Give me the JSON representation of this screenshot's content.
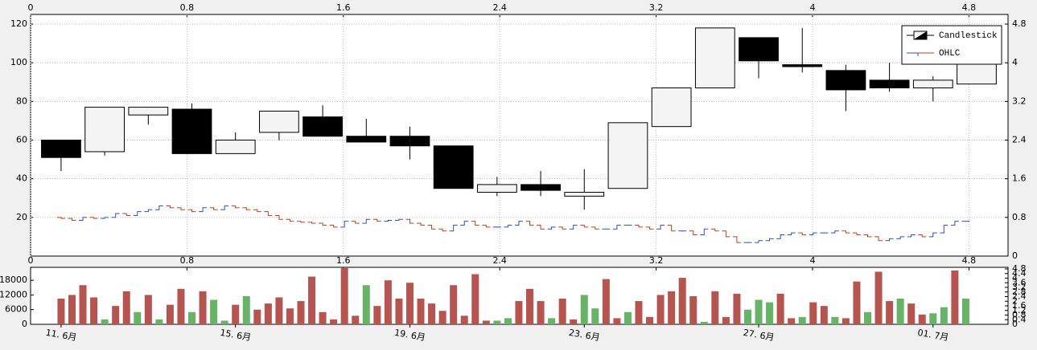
{
  "chart_data": [
    {
      "type": "candlestick",
      "xlim": [
        10.3,
        32.72
      ],
      "x2lim": [
        0,
        5
      ],
      "x2ticks": [
        0,
        0.8,
        1.6,
        2.4,
        3.2,
        4,
        4.8
      ],
      "ylim": [
        0,
        125
      ],
      "yticks": [
        20,
        40,
        60,
        80,
        100,
        120
      ],
      "y2lim": [
        0,
        5
      ],
      "y2ticks": [
        0,
        0.8,
        1.6,
        2.4,
        3.2,
        4,
        4.8
      ],
      "grid": true,
      "legend": "top-right",
      "series": [
        {
          "name": "Candlestick",
          "type": "candlestick",
          "up_color": "#f4f4f4",
          "down_color": "#000000",
          "x": [
            11,
            12,
            13,
            14,
            15,
            16,
            17,
            18,
            19,
            20,
            21,
            22,
            23,
            24,
            25,
            26,
            27,
            28,
            29,
            30,
            31,
            32
          ],
          "open": [
            60,
            54,
            73,
            76,
            53,
            64,
            72,
            62,
            62,
            57,
            33,
            37,
            31,
            35,
            67,
            87,
            113,
            99,
            96,
            91,
            87,
            89
          ],
          "high": [
            60,
            77,
            77,
            79,
            64,
            75,
            78,
            71,
            67,
            57,
            41,
            44,
            45,
            69,
            87,
            118,
            113,
            118,
            99,
            100,
            93,
            104
          ],
          "low": [
            44,
            52,
            68,
            53,
            53,
            60,
            62,
            59,
            50,
            35,
            31,
            31,
            24,
            35,
            67,
            87,
            92,
            95,
            75,
            85,
            80,
            89
          ],
          "close": [
            51,
            77,
            77,
            53,
            60,
            75,
            62,
            59,
            57,
            35,
            37,
            34,
            33,
            69,
            87,
            118,
            101,
            98,
            86,
            87,
            91,
            104
          ]
        },
        {
          "name": "OHLC",
          "type": "ohlc",
          "up_color": "#3050c0",
          "down_color": "#c04020",
          "x": [
            11,
            11.25,
            11.5,
            11.75,
            12,
            12.25,
            12.5,
            12.75,
            13,
            13.25,
            13.5,
            13.75,
            14,
            14.25,
            14.5,
            14.75,
            15,
            15.25,
            15.5,
            15.75,
            16,
            16.25,
            16.5,
            16.75,
            17,
            17.25,
            17.5,
            17.75,
            18,
            18.25,
            18.5,
            18.75,
            19,
            19.25,
            19.5,
            19.75,
            20,
            20.25,
            20.5,
            20.75,
            21,
            21.25,
            21.5,
            21.75,
            22,
            22.25,
            22.5,
            22.75,
            23,
            23.25,
            23.5,
            23.75,
            24,
            24.25,
            24.5,
            24.75,
            25,
            25.25,
            25.5,
            25.75,
            26,
            26.25,
            26.5,
            26.75,
            27,
            27.25,
            27.5,
            27.75,
            28,
            28.25,
            28.5,
            28.75,
            29,
            29.25,
            29.5,
            29.75,
            30,
            30.25,
            30.5,
            30.75,
            31,
            31.25,
            31.5,
            31.75
          ],
          "open": [
            20,
            19.5,
            18.5,
            20,
            19.5,
            20,
            22,
            21,
            23,
            24,
            26,
            25,
            24,
            23,
            25,
            24,
            26,
            25,
            24,
            23,
            21,
            19,
            18,
            17.5,
            17,
            16,
            15,
            18,
            17,
            19,
            18,
            18.5,
            19,
            17,
            16,
            14,
            13,
            16,
            18,
            16,
            15,
            15,
            16,
            18,
            16,
            14,
            15,
            14,
            16,
            15,
            14,
            14,
            16,
            16,
            15,
            14,
            16,
            13,
            13,
            11,
            14,
            13,
            10,
            7,
            7,
            8,
            9,
            11,
            12,
            11,
            12,
            12,
            13,
            12,
            11,
            10,
            8,
            9,
            10,
            11,
            10,
            12,
            16,
            18
          ],
          "high": [
            20,
            19.5,
            20,
            20,
            20,
            22,
            22,
            23,
            24,
            26,
            26,
            25,
            24,
            25,
            25,
            26,
            26,
            25,
            24,
            23,
            21,
            19,
            18,
            17.5,
            17,
            16,
            18,
            18,
            19,
            19,
            18.5,
            19,
            19,
            17,
            16,
            14,
            16,
            18,
            18,
            16,
            15,
            16,
            18,
            18,
            16,
            15,
            15,
            16,
            16,
            15,
            14,
            16,
            16,
            16,
            15,
            16,
            16,
            13,
            13,
            14,
            14,
            13,
            10,
            7,
            8,
            9,
            11,
            12,
            12,
            12,
            12,
            13,
            13,
            12,
            11,
            10,
            9,
            10,
            11,
            11,
            12,
            16,
            18,
            18
          ],
          "low": [
            19.5,
            18.5,
            18.5,
            19.5,
            19.5,
            20,
            21,
            21,
            23,
            24,
            25,
            24,
            23,
            23,
            24,
            24,
            25,
            24,
            23,
            21,
            19,
            18,
            17.5,
            17,
            16,
            15,
            15,
            17,
            17,
            18,
            18,
            18.5,
            17,
            16,
            14,
            13,
            13,
            16,
            16,
            15,
            15,
            15,
            16,
            16,
            14,
            14,
            14,
            14,
            15,
            14,
            14,
            14,
            16,
            15,
            14,
            14,
            13,
            13,
            11,
            11,
            13,
            10,
            7,
            7,
            7,
            8,
            9,
            11,
            11,
            11,
            12,
            12,
            12,
            11,
            10,
            8,
            8,
            9,
            10,
            10,
            10,
            12,
            16,
            18
          ],
          "close": [
            19.5,
            18.5,
            20,
            19.5,
            20,
            22,
            21,
            23,
            24,
            26,
            25,
            24,
            23,
            25,
            24,
            26,
            25,
            24,
            23,
            21,
            19,
            18,
            17.5,
            17,
            16,
            15,
            18,
            17,
            19,
            18,
            18.5,
            19,
            17,
            16,
            14,
            13,
            16,
            18,
            16,
            15,
            15,
            16,
            18,
            16,
            14,
            15,
            14,
            16,
            15,
            14,
            14,
            16,
            16,
            15,
            14,
            16,
            13,
            13,
            11,
            14,
            13,
            10,
            7,
            7,
            8,
            9,
            11,
            12,
            11,
            12,
            12,
            13,
            12,
            11,
            10,
            8,
            9,
            10,
            11,
            10,
            12,
            16,
            18,
            18
          ]
        }
      ]
    },
    {
      "type": "bar",
      "xlim": [
        10.3,
        32.72
      ],
      "xticks": [
        {
          "value": 11,
          "label": "11. 6月"
        },
        {
          "value": 15,
          "label": "15. 6月"
        },
        {
          "value": 19,
          "label": "19. 6月"
        },
        {
          "value": 23,
          "label": "23. 6月"
        },
        {
          "value": 27,
          "label": "27. 6月"
        },
        {
          "value": 31,
          "label": "01. 7月"
        }
      ],
      "x2lim": [
        0,
        5
      ],
      "x2ticks": [
        0,
        0.8,
        1.6,
        2.4,
        3.2,
        4,
        4.8
      ],
      "ylim": [
        0,
        23300
      ],
      "yticks": [
        0,
        6000,
        12000,
        18000
      ],
      "y2lim": [
        0,
        4.94
      ],
      "y2ticks": [
        0,
        0.4,
        0.8,
        1.2,
        1.6,
        2,
        2.4,
        2.8,
        3.2,
        3.6,
        4,
        4.4,
        4.8
      ],
      "grid": false,
      "x": [
        11,
        11.25,
        11.5,
        11.75,
        12,
        12.25,
        12.5,
        12.75,
        13,
        13.25,
        13.5,
        13.75,
        14,
        14.25,
        14.5,
        14.75,
        15,
        15.25,
        15.5,
        15.75,
        16,
        16.25,
        16.5,
        16.75,
        17,
        17.25,
        17.5,
        17.75,
        18,
        18.25,
        18.5,
        18.75,
        19,
        19.25,
        19.5,
        19.75,
        20,
        20.25,
        20.5,
        20.75,
        21,
        21.25,
        21.5,
        21.75,
        22,
        22.25,
        22.5,
        22.75,
        23,
        23.25,
        23.5,
        23.75,
        24,
        24.25,
        24.5,
        24.75,
        25,
        25.25,
        25.5,
        25.75,
        26,
        26.25,
        26.5,
        26.75,
        27,
        27.25,
        27.5,
        27.75,
        28,
        28.25,
        28.5,
        28.75,
        29,
        29.25,
        29.5,
        29.75,
        30,
        30.25,
        30.5,
        30.75,
        31,
        31.25,
        31.5,
        31.75
      ],
      "values": [
        10500,
        12000,
        16000,
        11000,
        2000,
        7500,
        13500,
        5000,
        12000,
        2000,
        8000,
        14500,
        5000,
        13500,
        10000,
        1500,
        8000,
        11500,
        6000,
        8500,
        11000,
        6500,
        9500,
        19500,
        5000,
        2000,
        23000,
        3500,
        16000,
        7500,
        18000,
        10500,
        17000,
        10500,
        8500,
        5500,
        16000,
        3500,
        20500,
        1500,
        1500,
        2500,
        9500,
        14500,
        9500,
        2500,
        10500,
        2000,
        12000,
        6500,
        18500,
        2500,
        5000,
        9500,
        3000,
        12000,
        13500,
        19000,
        11500,
        1000,
        13500,
        3000,
        12500,
        6000,
        10000,
        9000,
        12500,
        2500,
        3000,
        9000,
        7500,
        3000,
        2500,
        17500,
        5000,
        21500,
        9500,
        10500,
        8500,
        4000,
        4500,
        7000,
        22000,
        10500
      ],
      "colors": [
        "#b85450",
        "#b85450",
        "#b85450",
        "#b85450",
        "#66b466",
        "#b85450",
        "#b85450",
        "#66b466",
        "#b85450",
        "#66b466",
        "#b85450",
        "#b85450",
        "#66b466",
        "#b85450",
        "#66b466",
        "#66b466",
        "#b85450",
        "#66b466",
        "#b85450",
        "#b85450",
        "#b85450",
        "#b85450",
        "#b85450",
        "#b85450",
        "#b85450",
        "#b85450",
        "#b85450",
        "#b85450",
        "#66b466",
        "#b85450",
        "#b85450",
        "#b85450",
        "#b85450",
        "#b85450",
        "#b85450",
        "#b85450",
        "#b85450",
        "#b85450",
        "#b85450",
        "#b85450",
        "#66b466",
        "#66b466",
        "#b85450",
        "#b85450",
        "#b85450",
        "#66b466",
        "#b85450",
        "#b85450",
        "#66b466",
        "#66b466",
        "#b85450",
        "#b85450",
        "#66b466",
        "#b85450",
        "#b85450",
        "#b85450",
        "#b85450",
        "#b85450",
        "#b85450",
        "#66b466",
        "#b85450",
        "#b85450",
        "#b85450",
        "#66b466",
        "#66b466",
        "#66b466",
        "#b85450",
        "#b85450",
        "#66b466",
        "#b85450",
        "#b85450",
        "#66b466",
        "#b85450",
        "#b85450",
        "#66b466",
        "#b85450",
        "#b85450",
        "#66b466",
        "#b85450",
        "#b85450",
        "#66b466",
        "#66b466",
        "#b85450",
        "#66b466"
      ]
    }
  ]
}
